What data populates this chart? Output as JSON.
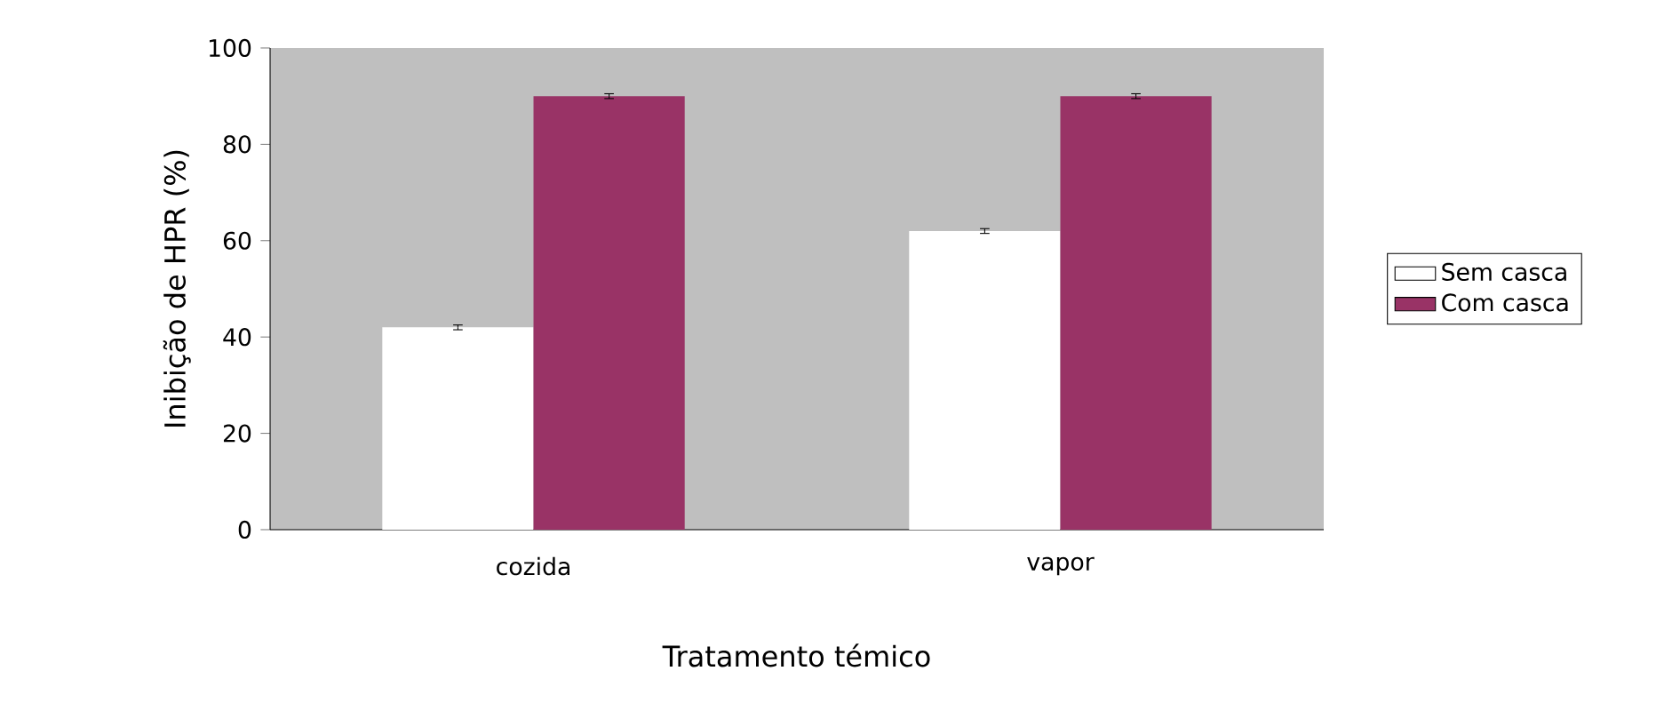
{
  "chart_data": {
    "type": "bar",
    "xlabel": "Tratamento témico",
    "ylabel": "Inibição de HPR (%)",
    "categories": [
      "cozida",
      "vapor"
    ],
    "series": [
      {
        "name": "Sem casca",
        "color": "#ffffff",
        "values": [
          42,
          62
        ],
        "errors": [
          0.5,
          0.5
        ]
      },
      {
        "name": "Com casca",
        "color": "#993366",
        "values": [
          90,
          90
        ],
        "errors": [
          0.5,
          0.5
        ]
      }
    ],
    "ylim": [
      0,
      100
    ],
    "yticks": [
      0,
      20,
      40,
      60,
      80,
      100
    ],
    "legend": "right"
  }
}
